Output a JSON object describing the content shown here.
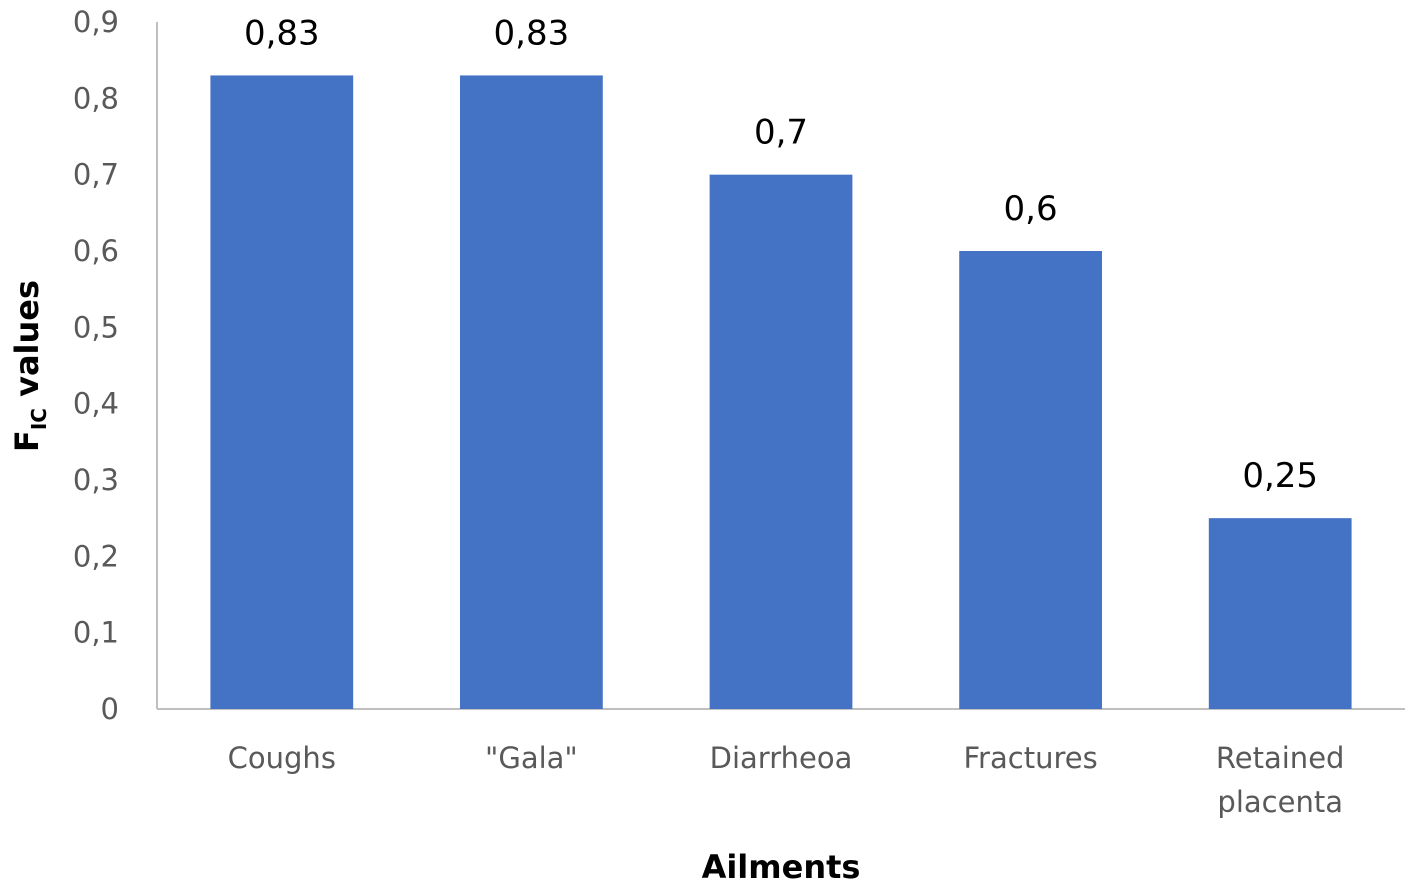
{
  "chart_data": {
    "type": "bar",
    "categories": [
      [
        "Coughs"
      ],
      [
        "\"Gala\""
      ],
      [
        "Diarrheoa"
      ],
      [
        "Fractures"
      ],
      [
        "Retained",
        "placenta"
      ]
    ],
    "values": [
      0.83,
      0.83,
      0.7,
      0.6,
      0.25
    ],
    "data_labels": [
      "0,83",
      "0,83",
      "0,7",
      "0,6",
      "0,25"
    ],
    "ylim": [
      0,
      0.9
    ],
    "yticks": [
      0,
      0.1,
      0.2,
      0.3,
      0.4,
      0.5,
      0.6,
      0.7,
      0.8,
      0.9
    ],
    "ytick_labels": [
      "0",
      "0,1",
      "0,2",
      "0,3",
      "0,4",
      "0,5",
      "0,6",
      "0,7",
      "0,8",
      "0,9"
    ],
    "xlabel": "Ailments",
    "ylabel": {
      "main": "F",
      "sub": "IC",
      "rest": " values"
    },
    "grid": false,
    "legend": "none",
    "colors": {
      "bar": "#4472C4",
      "axis": "#BFBFBF",
      "tick_text": "#595959"
    }
  }
}
